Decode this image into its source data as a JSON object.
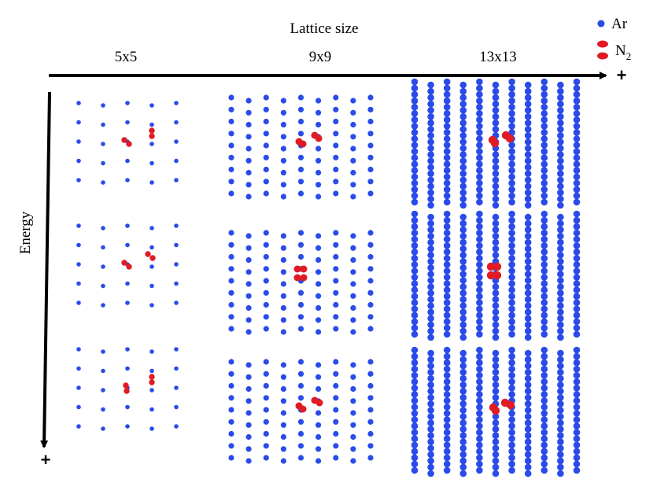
{
  "axes": {
    "x_title": "Lattice size",
    "y_title": "Energy",
    "x_plus": "+",
    "y_plus": "+"
  },
  "columns": [
    {
      "label": "5x5",
      "rows": 5,
      "cols": 5
    },
    {
      "label": "9x9",
      "rows": 9,
      "cols": 9
    },
    {
      "label": "13x13",
      "rows": 13,
      "cols": 13
    }
  ],
  "legend": {
    "ar_label": "Ar",
    "n2_label": "N",
    "n2_subscript": "2"
  },
  "colors": {
    "ar": "#2b4be8",
    "n2": "#e01b24",
    "axis": "#000000"
  },
  "energy_levels": 3
}
